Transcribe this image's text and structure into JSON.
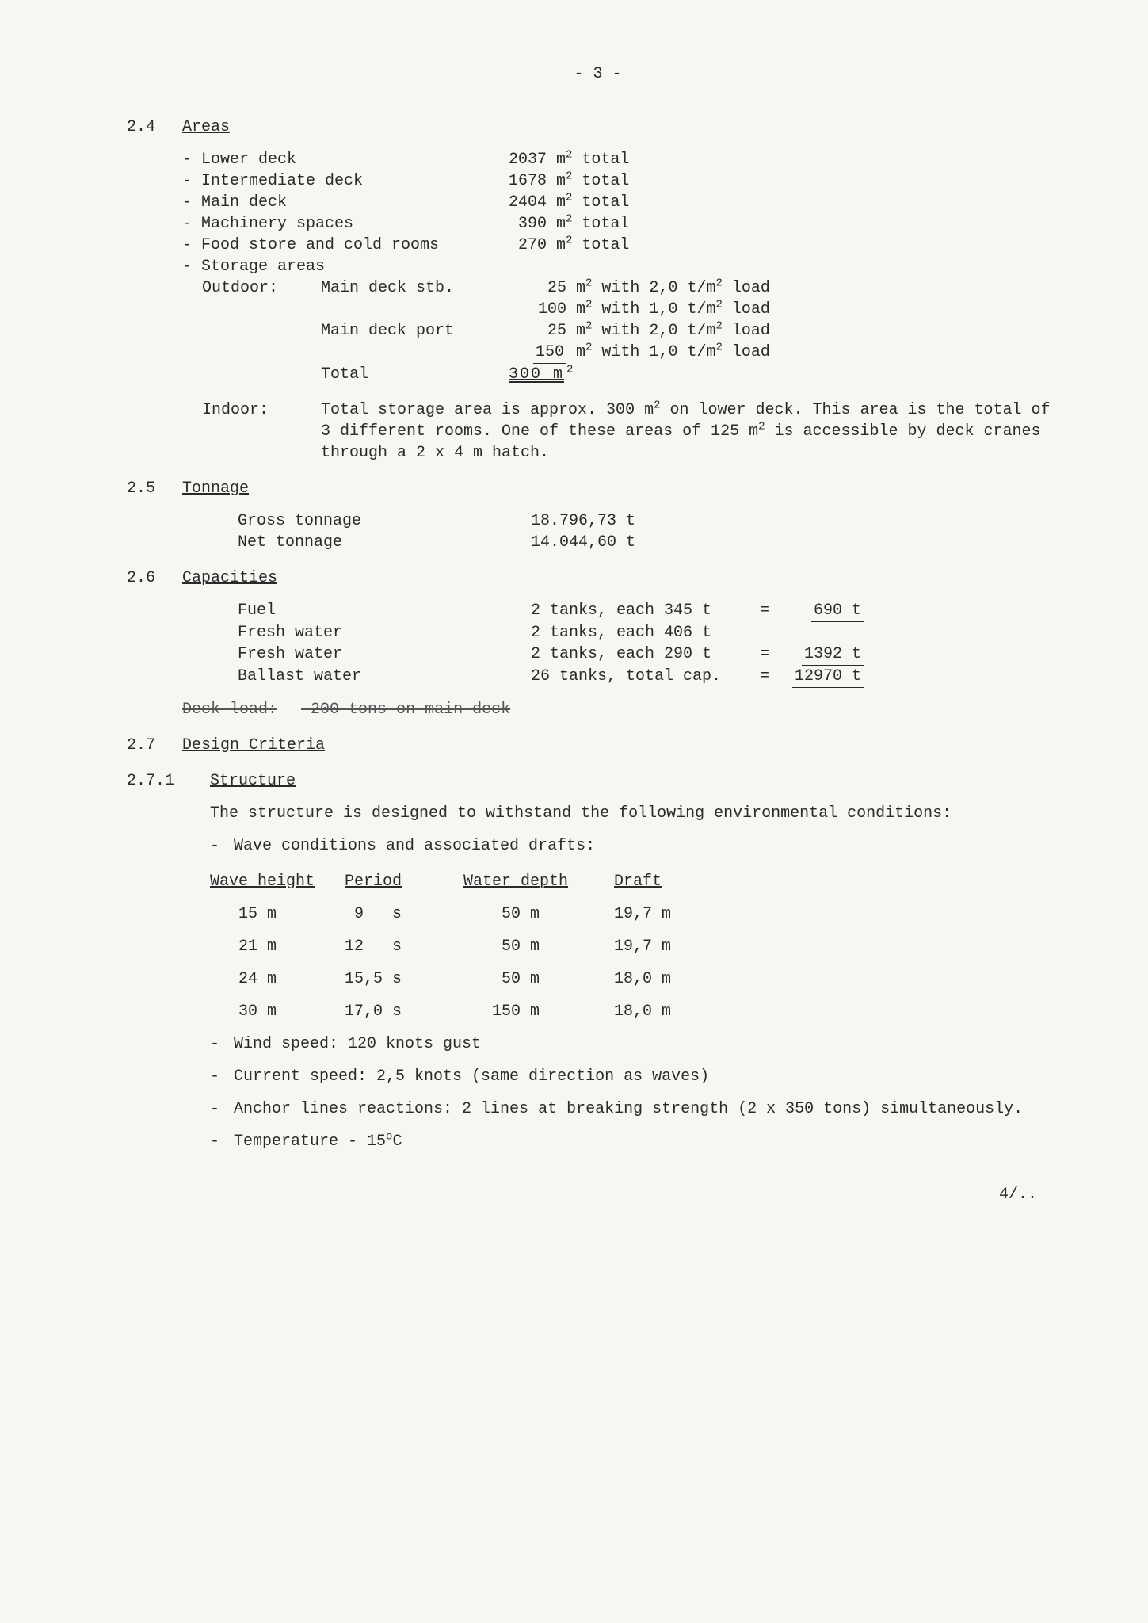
{
  "page_number": "- 3 -",
  "footer": "4/..",
  "s24": {
    "num": "2.4",
    "title": "Areas",
    "rows": [
      {
        "label": "- Lower deck",
        "val": "2037",
        "suffix": " total"
      },
      {
        "label": "- Intermediate deck",
        "val": "1678",
        "suffix": " total"
      },
      {
        "label": "- Main deck",
        "val": "2404",
        "suffix": " total"
      },
      {
        "label": "- Machinery spaces",
        "val": "390",
        "suffix": " total"
      },
      {
        "label": "- Food store and cold rooms",
        "val": "270",
        "suffix": " total"
      }
    ],
    "storage_label": "- Storage areas",
    "outdoor_label": "Outdoor:",
    "indoor_label": "Indoor:",
    "outdoor": {
      "rows": [
        {
          "a": "Main deck stb.",
          "val": "25",
          "load": "2,0"
        },
        {
          "a": "",
          "val": "100",
          "load": "1,0"
        },
        {
          "a": "Main deck port",
          "val": "25",
          "load": "2,0"
        },
        {
          "a": "",
          "val": "150",
          "load": "1,0"
        }
      ],
      "total_label": "Total",
      "total_value": "300"
    },
    "indoor_text_1": "Total storage area is approx. 300 m",
    "indoor_text_2": " on lower deck.  This area is the total of 3 different rooms.  One of these areas of 125 m",
    "indoor_text_3": " is accessible by deck cranes through a 2 x 4 m hatch."
  },
  "s25": {
    "num": "2.5",
    "title": "Tonnage",
    "rows": [
      {
        "label": "Gross tonnage",
        "val": "18.796,73 t"
      },
      {
        "label": "Net tonnage",
        "val": "14.044,60 t"
      }
    ]
  },
  "s26": {
    "num": "2.6",
    "title": "Capacities",
    "rows": [
      {
        "label": "Fuel",
        "detail": "2 tanks, each 345 t",
        "eq": "=",
        "total": "690 t",
        "u": true
      },
      {
        "label": "Fresh water",
        "detail": "2 tanks, each 406 t",
        "eq": "",
        "total": "",
        "u": false
      },
      {
        "label": "Fresh water",
        "detail": "2 tanks, each 290 t",
        "eq": "=",
        "total": "1392 t",
        "u": true
      },
      {
        "label": "Ballast water",
        "detail": "26 tanks, total cap.",
        "eq": "=",
        "total": "12970 t",
        "u": true
      }
    ],
    "deckload_label": "Deck load:",
    "deckload_value": "200 tons on main deck"
  },
  "s27": {
    "num": "2.7",
    "title": "Design Criteria"
  },
  "s271": {
    "num": "2.7.1",
    "title": "Structure",
    "intro": "The structure is designed to withstand the following environmental conditions:",
    "bullet_wave": "Wave conditions and associated drafts:",
    "table": {
      "head": [
        "Wave height",
        "Period",
        "Water depth",
        "Draft"
      ],
      "rows": [
        {
          "wh": "15 m",
          "p": " 9   s",
          "wd": " 50 m",
          "d": "19,7 m"
        },
        {
          "wh": "21 m",
          "p": "12   s",
          "wd": " 50 m",
          "d": "19,7 m"
        },
        {
          "wh": "24 m",
          "p": "15,5 s",
          "wd": " 50 m",
          "d": "18,0 m"
        },
        {
          "wh": "30 m",
          "p": "17,0 s",
          "wd": "150 m",
          "d": "18,0 m"
        }
      ]
    },
    "bullets": [
      "Wind speed:  120 knots gust",
      "Current speed:  2,5 knots (same direction as waves)",
      "Anchor lines reactions: 2 lines at breaking strength (2 x 350 tons) simultaneously."
    ],
    "temp_label": "Temperature - 15",
    "temp_unit": "C"
  }
}
